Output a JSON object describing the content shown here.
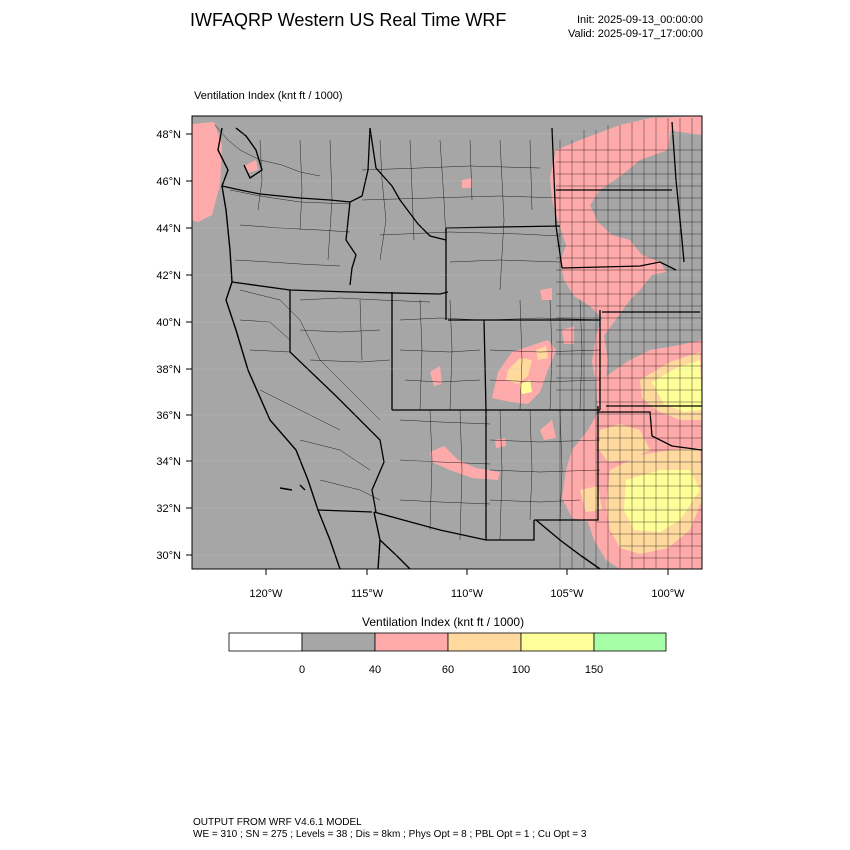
{
  "header": {
    "title": "IWFAQRP Western US Real Time WRF",
    "init": "Init: 2025-09-13_00:00:00",
    "valid": "Valid: 2025-09-17_17:00:00"
  },
  "map": {
    "subtitle": "Ventilation Index   (knt ft / 1000)",
    "lat_labels": [
      "48°N",
      "46°N",
      "44°N",
      "42°N",
      "40°N",
      "38°N",
      "36°N",
      "34°N",
      "32°N",
      "30°N"
    ],
    "lon_labels": [
      "120°W",
      "115°W",
      "110°W",
      "105°W",
      "100°W"
    ],
    "colors": {
      "class_0_40": "#a6a6a6",
      "class_40_60": "#ffaaaa",
      "class_60_100": "#ffd99e",
      "class_100_150": "#ffff99",
      "class_150_plus": "#a6ffa6"
    }
  },
  "colorbar": {
    "title": "Ventilation Index   (knt ft / 1000)",
    "ticks": [
      "0",
      "40",
      "60",
      "100",
      "150"
    ],
    "colors": [
      "#ffffff",
      "#a6a6a6",
      "#ffaaaa",
      "#ffd99e",
      "#ffff99",
      "#a6ffa6"
    ]
  },
  "footer": {
    "line1": "OUTPUT FROM WRF V4.6.1 MODEL",
    "line2": "WE = 310 ; SN = 275 ; Levels = 38 ; Dis = 8km ; Phys Opt = 8 ; PBL Opt = 1 ; Cu Opt = 3"
  }
}
